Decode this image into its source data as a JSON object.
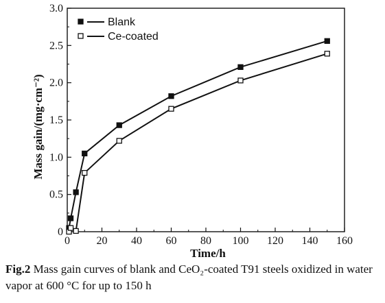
{
  "chart_data": {
    "type": "line",
    "xlabel": "Time/h",
    "ylabel": "Mass gain/(mg·cm⁻²)",
    "xlim": [
      0,
      160
    ],
    "ylim": [
      0,
      3.0
    ],
    "xticks": [
      "0",
      "20",
      "40",
      "60",
      "80",
      "100",
      "120",
      "140",
      "160"
    ],
    "yticks": [
      "0",
      "0.5",
      "1.0",
      "1.5",
      "2.0",
      "2.5",
      "3.0"
    ],
    "grid": false,
    "legend_position": "top-left",
    "series": [
      {
        "name": "Blank",
        "marker": "filled-square",
        "x": [
          1,
          2,
          5,
          10,
          30,
          60,
          100,
          150
        ],
        "y": [
          0.05,
          0.18,
          0.53,
          1.05,
          1.43,
          1.82,
          2.21,
          2.56
        ]
      },
      {
        "name": "Ce-coated",
        "marker": "open-square",
        "x": [
          1,
          2,
          5,
          10,
          30,
          60,
          100,
          150
        ],
        "y": [
          0.0,
          0.05,
          0.01,
          0.79,
          1.22,
          1.65,
          2.03,
          2.39
        ]
      }
    ]
  },
  "caption": {
    "label": "Fig.2",
    "text": "Mass gain curves of blank and CeO₂-coated T91 steels oxidized in water vapor at 600 °C for up to 150 h"
  }
}
